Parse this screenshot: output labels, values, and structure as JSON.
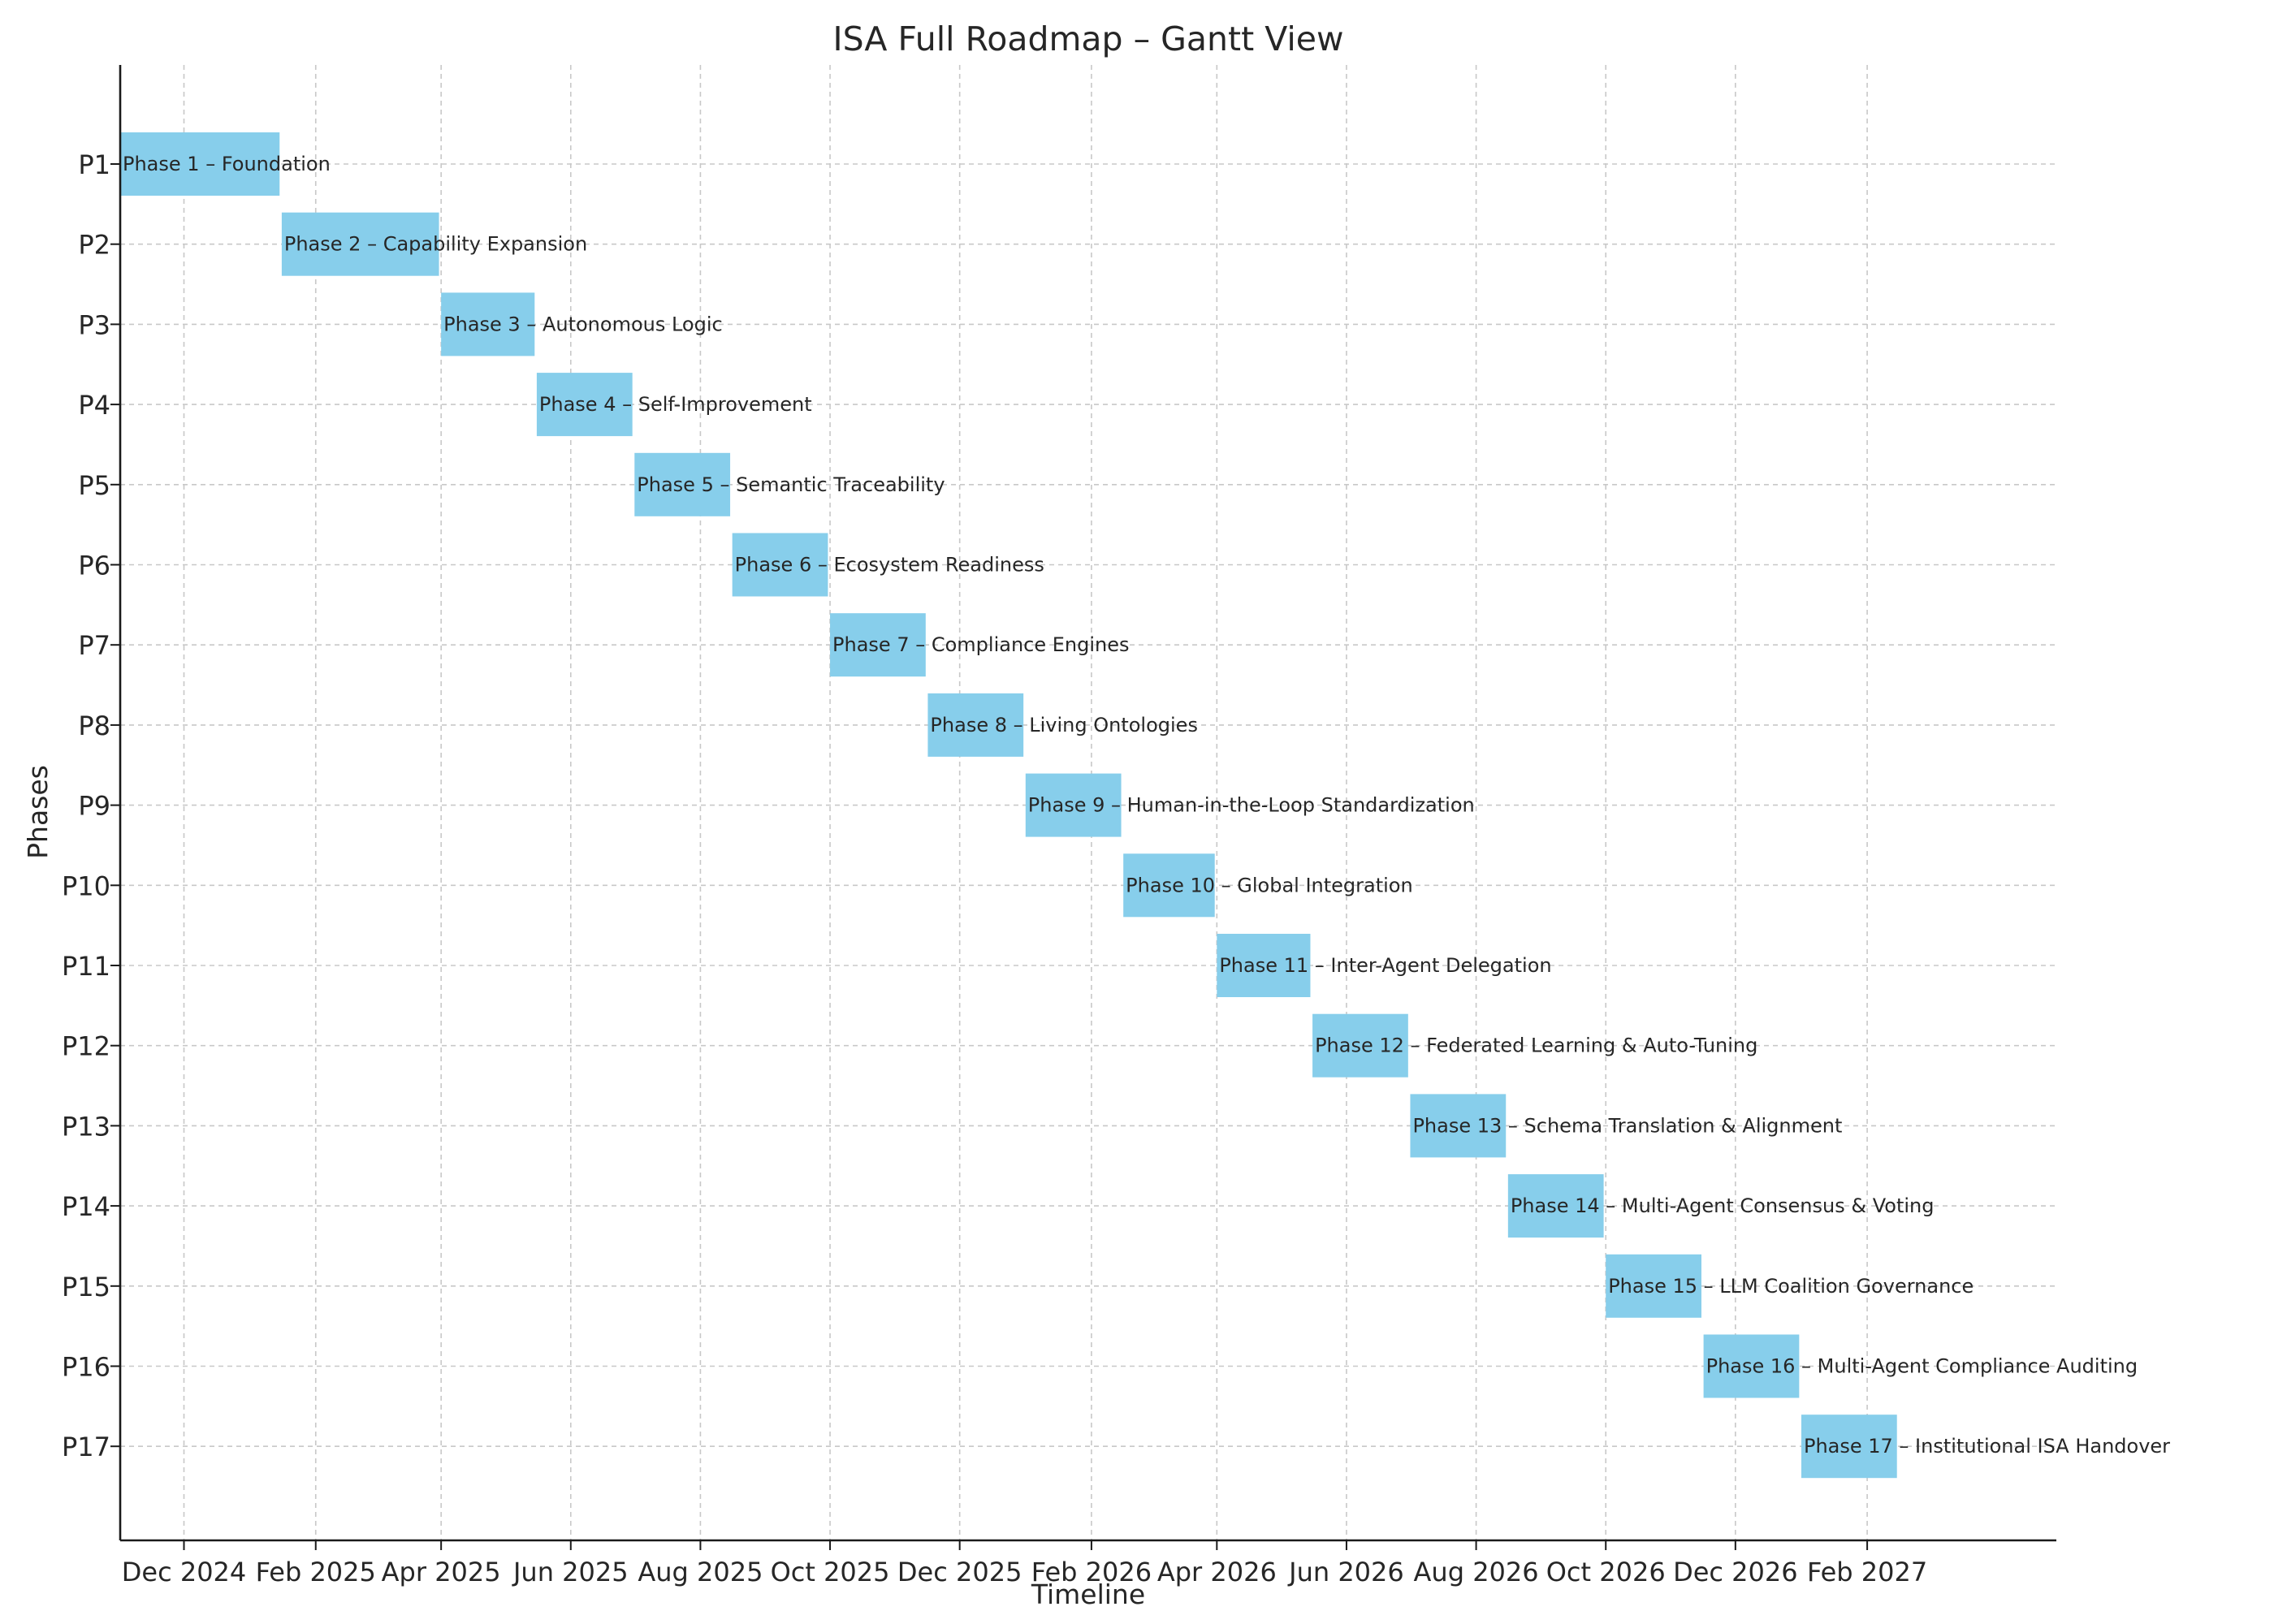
{
  "chart_data": {
    "type": "gantt",
    "title": "ISA Full Roadmap – Gantt View",
    "xlabel": "Timeline",
    "ylabel": "Phases",
    "grid": true,
    "bar_color": "#87ceeb",
    "xlim": [
      "2024-11-01",
      "2027-05-01"
    ],
    "x_ticks": [
      {
        "date": "2024-12-01",
        "label": "Dec 2024"
      },
      {
        "date": "2025-02-01",
        "label": "Feb 2025"
      },
      {
        "date": "2025-04-01",
        "label": "Apr 2025"
      },
      {
        "date": "2025-06-01",
        "label": "Jun 2025"
      },
      {
        "date": "2025-08-01",
        "label": "Aug 2025"
      },
      {
        "date": "2025-10-01",
        "label": "Oct 2025"
      },
      {
        "date": "2025-12-01",
        "label": "Dec 2025"
      },
      {
        "date": "2026-02-01",
        "label": "Feb 2026"
      },
      {
        "date": "2026-04-01",
        "label": "Apr 2026"
      },
      {
        "date": "2026-06-01",
        "label": "Jun 2026"
      },
      {
        "date": "2026-08-01",
        "label": "Aug 2026"
      },
      {
        "date": "2026-10-01",
        "label": "Oct 2026"
      },
      {
        "date": "2026-12-01",
        "label": "Dec 2026"
      },
      {
        "date": "2027-02-01",
        "label": "Feb 2027"
      }
    ],
    "tasks": [
      {
        "id": "P1",
        "label": "Phase 1 – Foundation",
        "start": "2024-11-01",
        "end": "2025-01-15"
      },
      {
        "id": "P2",
        "label": "Phase 2 – Capability Expansion",
        "start": "2025-01-16",
        "end": "2025-03-31"
      },
      {
        "id": "P3",
        "label": "Phase 3 – Autonomous Logic",
        "start": "2025-04-01",
        "end": "2025-05-15"
      },
      {
        "id": "P4",
        "label": "Phase 4 – Self-Improvement",
        "start": "2025-05-16",
        "end": "2025-06-30"
      },
      {
        "id": "P5",
        "label": "Phase 5 – Semantic Traceability",
        "start": "2025-07-01",
        "end": "2025-08-15"
      },
      {
        "id": "P6",
        "label": "Phase 6 – Ecosystem Readiness",
        "start": "2025-08-16",
        "end": "2025-09-30"
      },
      {
        "id": "P7",
        "label": "Phase 7 – Compliance Engines",
        "start": "2025-10-01",
        "end": "2025-11-15"
      },
      {
        "id": "P8",
        "label": "Phase 8 – Living Ontologies",
        "start": "2025-11-16",
        "end": "2025-12-31"
      },
      {
        "id": "P9",
        "label": "Phase 9 – Human-in-the-Loop Standardization",
        "start": "2026-01-01",
        "end": "2026-02-15"
      },
      {
        "id": "P10",
        "label": "Phase 10 – Global Integration",
        "start": "2026-02-16",
        "end": "2026-03-31"
      },
      {
        "id": "P11",
        "label": "Phase 11 – Inter-Agent Delegation",
        "start": "2026-04-01",
        "end": "2026-05-15"
      },
      {
        "id": "P12",
        "label": "Phase 12 – Federated Learning & Auto-Tuning",
        "start": "2026-05-16",
        "end": "2026-06-30"
      },
      {
        "id": "P13",
        "label": "Phase 13 – Schema Translation & Alignment",
        "start": "2026-07-01",
        "end": "2026-08-15"
      },
      {
        "id": "P14",
        "label": "Phase 14 – Multi-Agent Consensus & Voting",
        "start": "2026-08-16",
        "end": "2026-09-30"
      },
      {
        "id": "P15",
        "label": "Phase 15 – LLM Coalition Governance",
        "start": "2026-10-01",
        "end": "2026-11-15"
      },
      {
        "id": "P16",
        "label": "Phase 16 – Multi-Agent Compliance Auditing",
        "start": "2026-11-16",
        "end": "2026-12-31"
      },
      {
        "id": "P17",
        "label": "Phase 17 – Institutional ISA Handover",
        "start": "2027-01-01",
        "end": "2027-02-15"
      }
    ]
  }
}
